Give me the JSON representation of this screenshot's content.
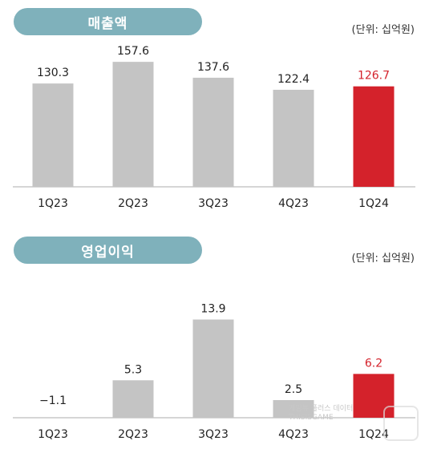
{
  "chart_data": [
    {
      "type": "bar",
      "title": "매출액",
      "unit_note": "(단위: 십억원)",
      "categories": [
        "1Q23",
        "2Q23",
        "3Q23",
        "4Q23",
        "1Q24"
      ],
      "values": [
        130.3,
        157.6,
        137.6,
        122.4,
        126.7
      ],
      "value_labels": [
        "130.3",
        "157.6",
        "137.6",
        "122.4",
        "126.7"
      ],
      "highlight_index": 4,
      "ylim": [
        0,
        180
      ],
      "grid": false,
      "colors": {
        "bar": "#c4c4c4",
        "highlight": "#d4222b",
        "label": "#222222",
        "highlight_label": "#d4222b"
      }
    },
    {
      "type": "bar",
      "title": "영업이익",
      "unit_note": "(단위: 십억원)",
      "categories": [
        "1Q23",
        "2Q23",
        "3Q23",
        "4Q23",
        "1Q24"
      ],
      "values": [
        -1.1,
        5.3,
        13.9,
        2.5,
        6.2
      ],
      "value_labels": [
        "−1.1",
        "5.3",
        "13.9",
        "2.5",
        "6.2"
      ],
      "highlight_index": 4,
      "ylim": [
        -1.1,
        16
      ],
      "grid": false,
      "colors": {
        "bar": "#c4c4c4",
        "highlight": "#d4222b",
        "label": "#222222",
        "highlight_label": "#d4222b"
      }
    }
  ],
  "watermark": {
    "line1": "게임뷰 플러스 데이터",
    "line2": "THISISGAME"
  }
}
